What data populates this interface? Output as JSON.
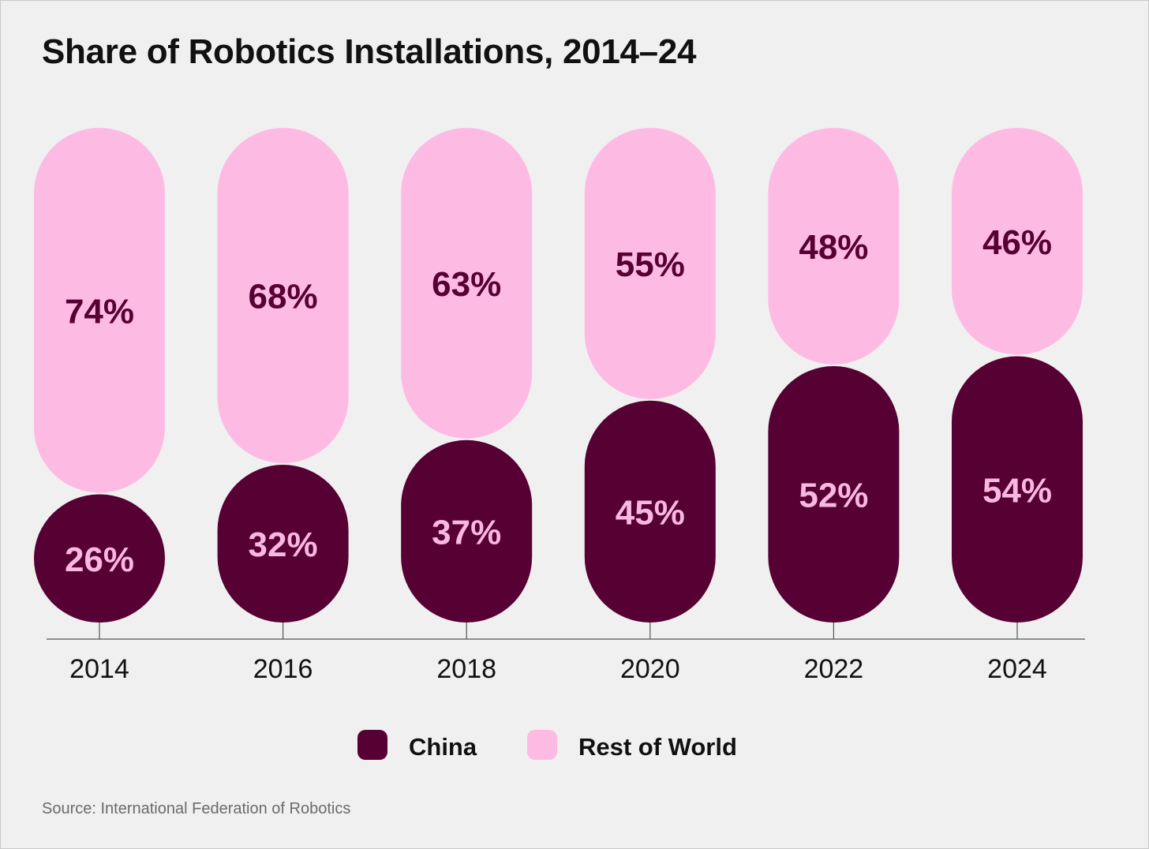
{
  "chart_data": {
    "type": "bar",
    "stacked": true,
    "percent_stacked": true,
    "title": "Share of Robotics Installations, 2014–24",
    "categories": [
      "2014",
      "2016",
      "2018",
      "2020",
      "2022",
      "2024"
    ],
    "series": [
      {
        "name": "China",
        "color": "#560033",
        "label_color": "#f9b8e0",
        "values": [
          26,
          32,
          37,
          45,
          52,
          54
        ],
        "labels": [
          "26%",
          "32%",
          "37%",
          "45%",
          "52%",
          "54%"
        ]
      },
      {
        "name": "Rest of World",
        "color": "#fdbbe3",
        "label_color": "#560033",
        "values": [
          74,
          68,
          63,
          55,
          48,
          46
        ],
        "labels": [
          "74%",
          "68%",
          "63%",
          "55%",
          "48%",
          "46%"
        ]
      }
    ],
    "ylim": [
      0,
      100
    ],
    "grid": false,
    "legend_position": "bottom-center",
    "source": "Source: International Federation of Robotics"
  }
}
